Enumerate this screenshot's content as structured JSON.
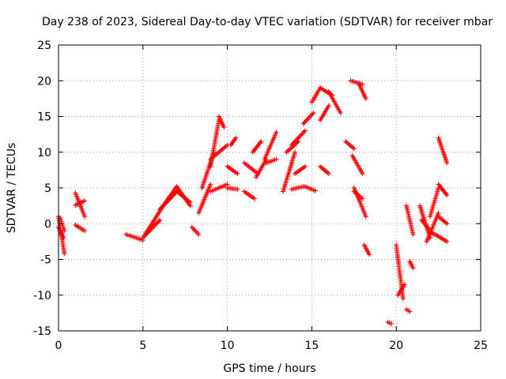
{
  "chart_data": {
    "type": "scatter",
    "title": "Day 238 of 2023, Sidereal Day-to-day VTEC variation (SDTVAR) for receiver mbar",
    "xlabel": "GPS time / hours",
    "ylabel": "SDTVAR / TECUs",
    "xlim": [
      0,
      25
    ],
    "ylim": [
      -15,
      25
    ],
    "xticks": [
      0,
      5,
      10,
      15,
      20,
      25
    ],
    "yticks": [
      -15,
      -10,
      -5,
      0,
      5,
      10,
      15,
      20,
      25
    ],
    "grid": true,
    "marker": "+",
    "series_color": "#ff0000",
    "segments": [
      {
        "x0": 0.0,
        "x1": 0.35,
        "y0": 1.0,
        "y1": -4.2
      },
      {
        "x0": 0.0,
        "x1": 0.3,
        "y0": -0.5,
        "y1": -2.0
      },
      {
        "x0": 0.1,
        "x1": 0.35,
        "y0": 0.8,
        "y1": -1.0
      },
      {
        "x0": 1.0,
        "x1": 1.55,
        "y0": 4.3,
        "y1": 1.0
      },
      {
        "x0": 1.0,
        "x1": 1.55,
        "y0": 2.6,
        "y1": 3.2
      },
      {
        "x0": 1.0,
        "x1": 1.55,
        "y0": -0.2,
        "y1": -1.0
      },
      {
        "x0": 4.0,
        "x1": 5.0,
        "y0": -1.5,
        "y1": -2.3
      },
      {
        "x0": 5.0,
        "x1": 6.2,
        "y0": -2.0,
        "y1": 2.5
      },
      {
        "x0": 5.2,
        "x1": 6.0,
        "y0": -1.5,
        "y1": 0.5
      },
      {
        "x0": 6.2,
        "x1": 7.0,
        "y0": 2.5,
        "y1": 5.2
      },
      {
        "x0": 6.0,
        "x1": 7.0,
        "y0": 2.0,
        "y1": 4.5
      },
      {
        "x0": 7.0,
        "x1": 7.8,
        "y0": 5.2,
        "y1": 2.5
      },
      {
        "x0": 7.0,
        "x1": 7.8,
        "y0": 4.5,
        "y1": 3.0
      },
      {
        "x0": 7.9,
        "x1": 8.3,
        "y0": -0.5,
        "y1": -1.5
      },
      {
        "x0": 8.3,
        "x1": 9.0,
        "y0": 1.5,
        "y1": 5.5
      },
      {
        "x0": 8.5,
        "x1": 9.2,
        "y0": 5.0,
        "y1": 10.0
      },
      {
        "x0": 9.0,
        "x1": 9.5,
        "y0": 8.0,
        "y1": 14.5
      },
      {
        "x0": 9.5,
        "x1": 9.8,
        "y0": 15.0,
        "y1": 13.5
      },
      {
        "x0": 9.0,
        "x1": 10.0,
        "y0": 4.5,
        "y1": 5.5
      },
      {
        "x0": 9.0,
        "x1": 10.0,
        "y0": 9.0,
        "y1": 11.0
      },
      {
        "x0": 10.0,
        "x1": 10.6,
        "y0": 5.0,
        "y1": 4.8
      },
      {
        "x0": 10.0,
        "x1": 10.6,
        "y0": 8.0,
        "y1": 7.0
      },
      {
        "x0": 10.2,
        "x1": 10.5,
        "y0": 11.0,
        "y1": 12.0
      },
      {
        "x0": 11.0,
        "x1": 11.8,
        "y0": 8.5,
        "y1": 7.0
      },
      {
        "x0": 11.0,
        "x1": 11.6,
        "y0": 4.5,
        "y1": 3.5
      },
      {
        "x0": 11.5,
        "x1": 12.0,
        "y0": 10.0,
        "y1": 11.5
      },
      {
        "x0": 11.7,
        "x1": 12.3,
        "y0": 6.5,
        "y1": 9.0
      },
      {
        "x0": 12.2,
        "x1": 12.9,
        "y0": 9.0,
        "y1": 12.8
      },
      {
        "x0": 12.3,
        "x1": 12.9,
        "y0": 8.5,
        "y1": 9.0
      },
      {
        "x0": 13.3,
        "x1": 14.0,
        "y0": 4.5,
        "y1": 10.0
      },
      {
        "x0": 13.5,
        "x1": 14.2,
        "y0": 10.0,
        "y1": 11.5
      },
      {
        "x0": 13.8,
        "x1": 14.6,
        "y0": 11.0,
        "y1": 13.0
      },
      {
        "x0": 13.8,
        "x1": 14.5,
        "y0": 4.8,
        "y1": 5.2
      },
      {
        "x0": 14.0,
        "x1": 14.6,
        "y0": 7.0,
        "y1": 8.0
      },
      {
        "x0": 14.5,
        "x1": 15.1,
        "y0": 14.0,
        "y1": 15.5
      },
      {
        "x0": 14.6,
        "x1": 15.2,
        "y0": 5.2,
        "y1": 4.6
      },
      {
        "x0": 15.0,
        "x1": 15.5,
        "y0": 17.0,
        "y1": 19.0
      },
      {
        "x0": 15.5,
        "x1": 16.2,
        "y0": 19.0,
        "y1": 18.0
      },
      {
        "x0": 15.5,
        "x1": 16.0,
        "y0": 14.5,
        "y1": 16.5
      },
      {
        "x0": 15.5,
        "x1": 16.0,
        "y0": 8.0,
        "y1": 7.0
      },
      {
        "x0": 16.0,
        "x1": 16.7,
        "y0": 18.5,
        "y1": 15.5
      },
      {
        "x0": 17.3,
        "x1": 18.0,
        "y0": 20.0,
        "y1": 19.5
      },
      {
        "x0": 17.8,
        "x1": 18.2,
        "y0": 19.5,
        "y1": 17.5
      },
      {
        "x0": 17.0,
        "x1": 17.5,
        "y0": 11.5,
        "y1": 10.5
      },
      {
        "x0": 17.4,
        "x1": 18.0,
        "y0": 9.5,
        "y1": 7.0
      },
      {
        "x0": 17.5,
        "x1": 18.2,
        "y0": 5.0,
        "y1": 1.0
      },
      {
        "x0": 17.5,
        "x1": 18.0,
        "y0": 4.5,
        "y1": 3.5
      },
      {
        "x0": 18.1,
        "x1": 18.4,
        "y0": -3.0,
        "y1": -4.3
      },
      {
        "x0": 19.5,
        "x1": 19.7,
        "y0": -13.8,
        "y1": -14.0
      },
      {
        "x0": 20.0,
        "x1": 20.4,
        "y0": -3.0,
        "y1": -10.5
      },
      {
        "x0": 20.1,
        "x1": 20.5,
        "y0": -10.0,
        "y1": -8.5
      },
      {
        "x0": 20.6,
        "x1": 20.8,
        "y0": -12.0,
        "y1": -12.3
      },
      {
        "x0": 20.6,
        "x1": 21.0,
        "y0": 2.5,
        "y1": -1.5
      },
      {
        "x0": 20.8,
        "x1": 21.0,
        "y0": -5.3,
        "y1": -6.2
      },
      {
        "x0": 21.4,
        "x1": 22.0,
        "y0": 2.5,
        "y1": -2.0
      },
      {
        "x0": 21.5,
        "x1": 22.2,
        "y0": 0.5,
        "y1": -1.5
      },
      {
        "x0": 21.8,
        "x1": 22.5,
        "y0": -2.5,
        "y1": 1.5
      },
      {
        "x0": 22.0,
        "x1": 22.5,
        "y0": 1.0,
        "y1": 5.0
      },
      {
        "x0": 22.5,
        "x1": 23.0,
        "y0": 5.5,
        "y1": 4.0
      },
      {
        "x0": 22.5,
        "x1": 23.0,
        "y0": 12.0,
        "y1": 8.5
      },
      {
        "x0": 22.3,
        "x1": 23.0,
        "y0": -1.5,
        "y1": -2.5
      },
      {
        "x0": 22.5,
        "x1": 23.0,
        "y0": 1.0,
        "y1": 0.0
      }
    ]
  }
}
